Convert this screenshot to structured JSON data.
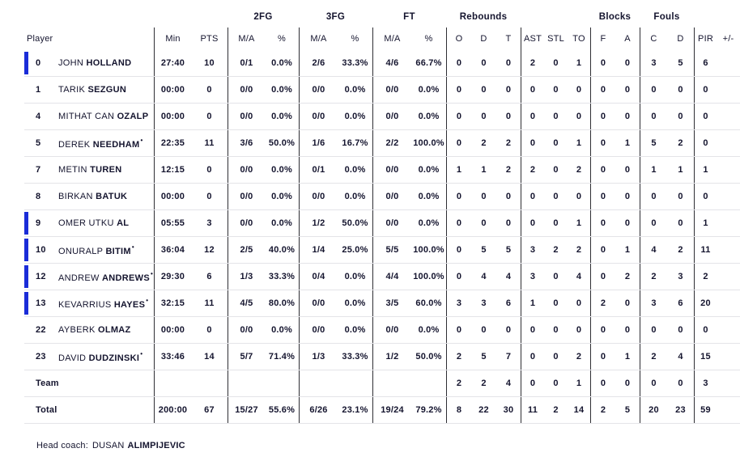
{
  "colors": {
    "accent": "#1a2cd8",
    "text": "#14142e",
    "divider": "#2e2e34",
    "row_line": "#e4e4e8"
  },
  "table": {
    "groups": {
      "fg2": "2FG",
      "fg3": "3FG",
      "ft": "FT",
      "rebounds": "Rebounds",
      "blocks": "Blocks",
      "fouls": "Fouls"
    },
    "cols": {
      "player": "Player",
      "min": "Min",
      "pts": "PTS",
      "ma": "M/A",
      "pct": "%",
      "o": "O",
      "d": "D",
      "t": "T",
      "ast": "AST",
      "stl": "STL",
      "to": "TO",
      "f": "F",
      "a": "A",
      "c": "C",
      "d2": "D",
      "pir": "PIR",
      "pm": "+/-"
    },
    "starter_mark": "•",
    "players": [
      {
        "no": "0",
        "first": "JOHN",
        "last": "HOLLAND",
        "starter": false,
        "on_court": true,
        "min": "27:40",
        "pts": "10",
        "fg2_ma": "0/1",
        "fg2_pct": "0.0%",
        "fg3_ma": "2/6",
        "fg3_pct": "33.3%",
        "ft_ma": "4/6",
        "ft_pct": "66.7%",
        "reb_o": "0",
        "reb_d": "0",
        "reb_t": "0",
        "ast": "2",
        "stl": "0",
        "to": "1",
        "blk_f": "0",
        "blk_a": "0",
        "foul_c": "3",
        "foul_d": "5",
        "pir": "6",
        "plus_minus": ""
      },
      {
        "no": "1",
        "first": "TARIK",
        "last": "SEZGUN",
        "starter": false,
        "on_court": false,
        "min": "00:00",
        "pts": "0",
        "fg2_ma": "0/0",
        "fg2_pct": "0.0%",
        "fg3_ma": "0/0",
        "fg3_pct": "0.0%",
        "ft_ma": "0/0",
        "ft_pct": "0.0%",
        "reb_o": "0",
        "reb_d": "0",
        "reb_t": "0",
        "ast": "0",
        "stl": "0",
        "to": "0",
        "blk_f": "0",
        "blk_a": "0",
        "foul_c": "0",
        "foul_d": "0",
        "pir": "0",
        "plus_minus": ""
      },
      {
        "no": "4",
        "first": "MITHAT CAN",
        "last": "OZALP",
        "starter": false,
        "on_court": false,
        "min": "00:00",
        "pts": "0",
        "fg2_ma": "0/0",
        "fg2_pct": "0.0%",
        "fg3_ma": "0/0",
        "fg3_pct": "0.0%",
        "ft_ma": "0/0",
        "ft_pct": "0.0%",
        "reb_o": "0",
        "reb_d": "0",
        "reb_t": "0",
        "ast": "0",
        "stl": "0",
        "to": "0",
        "blk_f": "0",
        "blk_a": "0",
        "foul_c": "0",
        "foul_d": "0",
        "pir": "0",
        "plus_minus": ""
      },
      {
        "no": "5",
        "first": "DEREK",
        "last": "NEEDHAM",
        "starter": true,
        "on_court": false,
        "min": "22:35",
        "pts": "11",
        "fg2_ma": "3/6",
        "fg2_pct": "50.0%",
        "fg3_ma": "1/6",
        "fg3_pct": "16.7%",
        "ft_ma": "2/2",
        "ft_pct": "100.0%",
        "reb_o": "0",
        "reb_d": "2",
        "reb_t": "2",
        "ast": "0",
        "stl": "0",
        "to": "1",
        "blk_f": "0",
        "blk_a": "1",
        "foul_c": "5",
        "foul_d": "2",
        "pir": "0",
        "plus_minus": ""
      },
      {
        "no": "7",
        "first": "METIN",
        "last": "TUREN",
        "starter": false,
        "on_court": false,
        "min": "12:15",
        "pts": "0",
        "fg2_ma": "0/0",
        "fg2_pct": "0.0%",
        "fg3_ma": "0/1",
        "fg3_pct": "0.0%",
        "ft_ma": "0/0",
        "ft_pct": "0.0%",
        "reb_o": "1",
        "reb_d": "1",
        "reb_t": "2",
        "ast": "2",
        "stl": "0",
        "to": "2",
        "blk_f": "0",
        "blk_a": "0",
        "foul_c": "1",
        "foul_d": "1",
        "pir": "1",
        "plus_minus": ""
      },
      {
        "no": "8",
        "first": "BIRKAN",
        "last": "BATUK",
        "starter": false,
        "on_court": false,
        "min": "00:00",
        "pts": "0",
        "fg2_ma": "0/0",
        "fg2_pct": "0.0%",
        "fg3_ma": "0/0",
        "fg3_pct": "0.0%",
        "ft_ma": "0/0",
        "ft_pct": "0.0%",
        "reb_o": "0",
        "reb_d": "0",
        "reb_t": "0",
        "ast": "0",
        "stl": "0",
        "to": "0",
        "blk_f": "0",
        "blk_a": "0",
        "foul_c": "0",
        "foul_d": "0",
        "pir": "0",
        "plus_minus": ""
      },
      {
        "no": "9",
        "first": "OMER UTKU",
        "last": "AL",
        "starter": false,
        "on_court": true,
        "min": "05:55",
        "pts": "3",
        "fg2_ma": "0/0",
        "fg2_pct": "0.0%",
        "fg3_ma": "1/2",
        "fg3_pct": "50.0%",
        "ft_ma": "0/0",
        "ft_pct": "0.0%",
        "reb_o": "0",
        "reb_d": "0",
        "reb_t": "0",
        "ast": "0",
        "stl": "0",
        "to": "1",
        "blk_f": "0",
        "blk_a": "0",
        "foul_c": "0",
        "foul_d": "0",
        "pir": "1",
        "plus_minus": ""
      },
      {
        "no": "10",
        "first": "ONURALP",
        "last": "BITIM",
        "starter": true,
        "on_court": true,
        "min": "36:04",
        "pts": "12",
        "fg2_ma": "2/5",
        "fg2_pct": "40.0%",
        "fg3_ma": "1/4",
        "fg3_pct": "25.0%",
        "ft_ma": "5/5",
        "ft_pct": "100.0%",
        "reb_o": "0",
        "reb_d": "5",
        "reb_t": "5",
        "ast": "3",
        "stl": "2",
        "to": "2",
        "blk_f": "0",
        "blk_a": "1",
        "foul_c": "4",
        "foul_d": "2",
        "pir": "11",
        "plus_minus": ""
      },
      {
        "no": "12",
        "first": "ANDREW",
        "last": "ANDREWS",
        "starter": true,
        "on_court": true,
        "min": "29:30",
        "pts": "6",
        "fg2_ma": "1/3",
        "fg2_pct": "33.3%",
        "fg3_ma": "0/4",
        "fg3_pct": "0.0%",
        "ft_ma": "4/4",
        "ft_pct": "100.0%",
        "reb_o": "0",
        "reb_d": "4",
        "reb_t": "4",
        "ast": "3",
        "stl": "0",
        "to": "4",
        "blk_f": "0",
        "blk_a": "2",
        "foul_c": "2",
        "foul_d": "3",
        "pir": "2",
        "plus_minus": ""
      },
      {
        "no": "13",
        "first": "KEVARRIUS",
        "last": "HAYES",
        "starter": true,
        "on_court": true,
        "min": "32:15",
        "pts": "11",
        "fg2_ma": "4/5",
        "fg2_pct": "80.0%",
        "fg3_ma": "0/0",
        "fg3_pct": "0.0%",
        "ft_ma": "3/5",
        "ft_pct": "60.0%",
        "reb_o": "3",
        "reb_d": "3",
        "reb_t": "6",
        "ast": "1",
        "stl": "0",
        "to": "0",
        "blk_f": "2",
        "blk_a": "0",
        "foul_c": "3",
        "foul_d": "6",
        "pir": "20",
        "plus_minus": ""
      },
      {
        "no": "22",
        "first": "AYBERK",
        "last": "OLMAZ",
        "starter": false,
        "on_court": false,
        "min": "00:00",
        "pts": "0",
        "fg2_ma": "0/0",
        "fg2_pct": "0.0%",
        "fg3_ma": "0/0",
        "fg3_pct": "0.0%",
        "ft_ma": "0/0",
        "ft_pct": "0.0%",
        "reb_o": "0",
        "reb_d": "0",
        "reb_t": "0",
        "ast": "0",
        "stl": "0",
        "to": "0",
        "blk_f": "0",
        "blk_a": "0",
        "foul_c": "0",
        "foul_d": "0",
        "pir": "0",
        "plus_minus": ""
      },
      {
        "no": "23",
        "first": "DAVID",
        "last": "DUDZINSKI",
        "starter": true,
        "on_court": false,
        "min": "33:46",
        "pts": "14",
        "fg2_ma": "5/7",
        "fg2_pct": "71.4%",
        "fg3_ma": "1/3",
        "fg3_pct": "33.3%",
        "ft_ma": "1/2",
        "ft_pct": "50.0%",
        "reb_o": "2",
        "reb_d": "5",
        "reb_t": "7",
        "ast": "0",
        "stl": "0",
        "to": "2",
        "blk_f": "0",
        "blk_a": "1",
        "foul_c": "2",
        "foul_d": "4",
        "pir": "15",
        "plus_minus": ""
      }
    ],
    "team_row": {
      "label": "Team",
      "min": "",
      "pts": "",
      "fg2_ma": "",
      "fg2_pct": "",
      "fg3_ma": "",
      "fg3_pct": "",
      "ft_ma": "",
      "ft_pct": "",
      "reb_o": "2",
      "reb_d": "2",
      "reb_t": "4",
      "ast": "0",
      "stl": "0",
      "to": "1",
      "blk_f": "0",
      "blk_a": "0",
      "foul_c": "0",
      "foul_d": "0",
      "pir": "3",
      "plus_minus": ""
    },
    "total_row": {
      "label": "Total",
      "min": "200:00",
      "pts": "67",
      "fg2_ma": "15/27",
      "fg2_pct": "55.6%",
      "fg3_ma": "6/26",
      "fg3_pct": "23.1%",
      "ft_ma": "19/24",
      "ft_pct": "79.2%",
      "reb_o": "8",
      "reb_d": "22",
      "reb_t": "30",
      "ast": "11",
      "stl": "2",
      "to": "14",
      "blk_f": "2",
      "blk_a": "5",
      "foul_c": "20",
      "foul_d": "23",
      "pir": "59",
      "plus_minus": ""
    }
  },
  "footer": {
    "head_coach_label": "Head coach:",
    "coach_first": "DUSAN",
    "coach_last": "ALIMPIJEVIC"
  }
}
